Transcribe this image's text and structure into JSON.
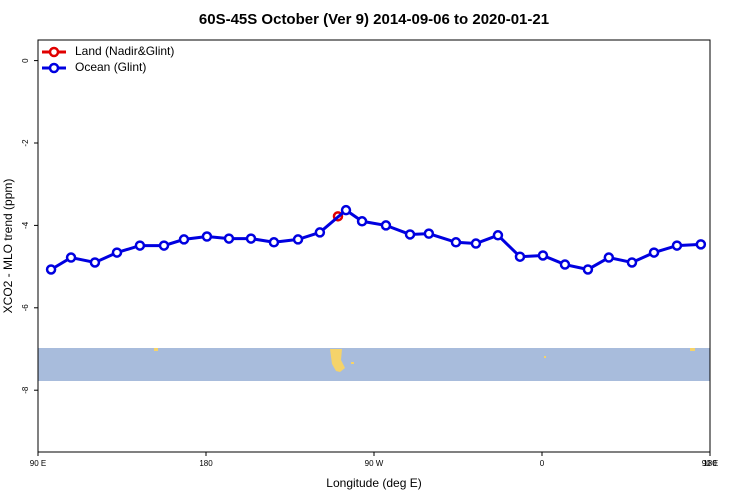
{
  "chart_data": {
    "type": "line",
    "title": "60S-45S October (Ver 9)   2014-09-06 to 2020-01-21",
    "x_label": "Longitude (deg E)",
    "y_label": "XCO2 - MLO trend (ppm)",
    "xlim": [
      90,
      450
    ],
    "ylim": [
      -9.5,
      0.5
    ],
    "xticks": [
      {
        "value": 90,
        "label": "90 E"
      },
      180,
      {
        "value": 270,
        "label": "90 W"
      },
      {
        "value": 360,
        "label": "0"
      },
      {
        "value": 450,
        "label": "90 E"
      },
      {
        "value": 540,
        "label": "180"
      }
    ],
    "yticks": [
      0,
      -2,
      -4,
      -6,
      -8
    ],
    "legend": "top-left",
    "series": [
      {
        "name": "Land (Nadir&Glint)",
        "color": "#e00000",
        "x": [
          250.7
        ],
        "values": [
          -3.78
        ]
      },
      {
        "name": "Ocean (Glint)",
        "color": "#0000e0",
        "x": [
          97,
          107.7,
          120.5,
          132.3,
          144.6,
          157.5,
          168.2,
          180.5,
          192.3,
          204.1,
          216.4,
          229.3,
          241,
          255,
          263.6,
          276.4,
          289.3,
          299.4,
          313.9,
          324.6,
          336.4,
          348.2,
          360.5,
          372.3,
          384.6,
          395.8,
          408.2,
          420,
          432.3,
          445.1
        ],
        "values": [
          -5.07,
          -4.78,
          -4.9,
          -4.66,
          -4.49,
          -4.49,
          -4.34,
          -4.27,
          -4.32,
          -4.32,
          -4.41,
          -4.34,
          -4.17,
          -3.63,
          -3.9,
          -4.0,
          -4.22,
          -4.2,
          -4.41,
          -4.44,
          -4.24,
          -4.76,
          -4.73,
          -4.95,
          -5.07,
          -4.78,
          -4.9,
          -4.66,
          -4.49,
          -4.46
        ]
      }
    ]
  }
}
